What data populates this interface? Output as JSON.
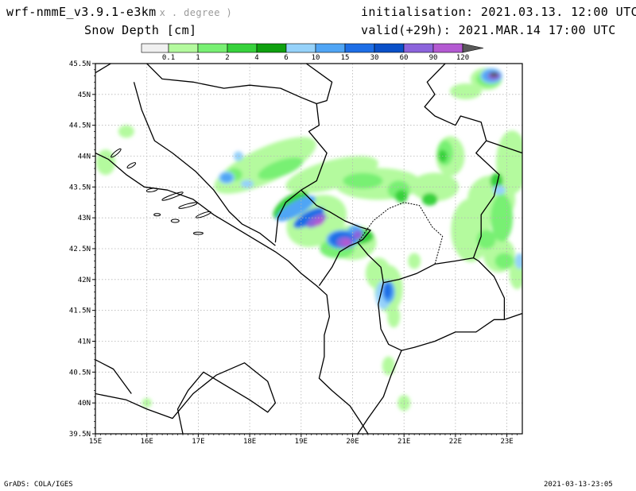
{
  "header": {
    "model": "wrf-nmmE_v3.9.1-e3km",
    "model_suffix": "x . degree )",
    "variable": "Snow Depth [cm]",
    "init_label": "initialisation:",
    "init_value": "2021.03.13.  12:00 UTC",
    "valid_label": "valid(+29h):",
    "valid_value": "2021.MAR.14 17:00 UTC"
  },
  "legend": {
    "ticks": [
      "0.1",
      "1",
      "2",
      "4",
      "6",
      "10",
      "15",
      "30",
      "60",
      "90",
      "120"
    ],
    "colors": [
      "#f0f0f0",
      "#b4fa9e",
      "#78f073",
      "#37d23c",
      "#0fa00f",
      "#96d2fa",
      "#50a5f5",
      "#1e6ee6",
      "#0a50c8",
      "#8c64dc",
      "#b45ad2",
      "#595959"
    ]
  },
  "map": {
    "lon_labels": [
      "15E",
      "16E",
      "17E",
      "18E",
      "19E",
      "20E",
      "21E",
      "22E",
      "23E"
    ],
    "lat_labels": [
      "45.5N",
      "45N",
      "44.5N",
      "44N",
      "43.5N",
      "43N",
      "42.5N",
      "42N",
      "41.5N",
      "41N",
      "40.5N",
      "40N",
      "39.5N"
    ],
    "extent": {
      "lon_min": 15,
      "lon_max": 23.3,
      "lat_min": 39.5,
      "lat_max": 45.5
    }
  },
  "footer": {
    "credit": "GrADS: COLA/IGES",
    "timestamp": "2021-03-13-23:05"
  }
}
